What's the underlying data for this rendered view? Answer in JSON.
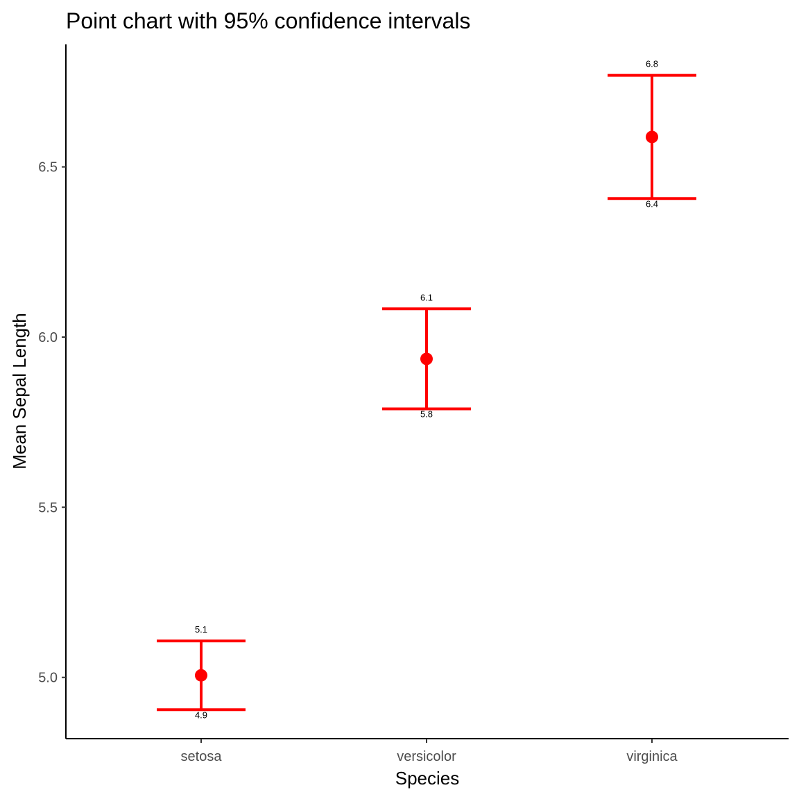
{
  "chart_data": {
    "type": "scatter",
    "title": "Point chart with 95% confidence intervals",
    "xlabel": "Species",
    "ylabel": "Mean Sepal Length",
    "categories": [
      "setosa",
      "versicolor",
      "virginica"
    ],
    "means": [
      5.006,
      5.936,
      6.588
    ],
    "lower": [
      4.905,
      5.789,
      6.407
    ],
    "upper": [
      5.107,
      6.083,
      6.769
    ],
    "lower_labels": [
      "4.9",
      "5.8",
      "6.4"
    ],
    "upper_labels": [
      "5.1",
      "6.1",
      "6.8"
    ],
    "yticks": [
      5.0,
      5.5,
      6.0,
      6.5
    ],
    "ytick_labels": [
      "5.0",
      "5.5",
      "6.0",
      "6.5"
    ],
    "ylim": [
      4.82,
      6.86
    ],
    "grid": false,
    "legend": "none",
    "color": "#ff0000"
  }
}
